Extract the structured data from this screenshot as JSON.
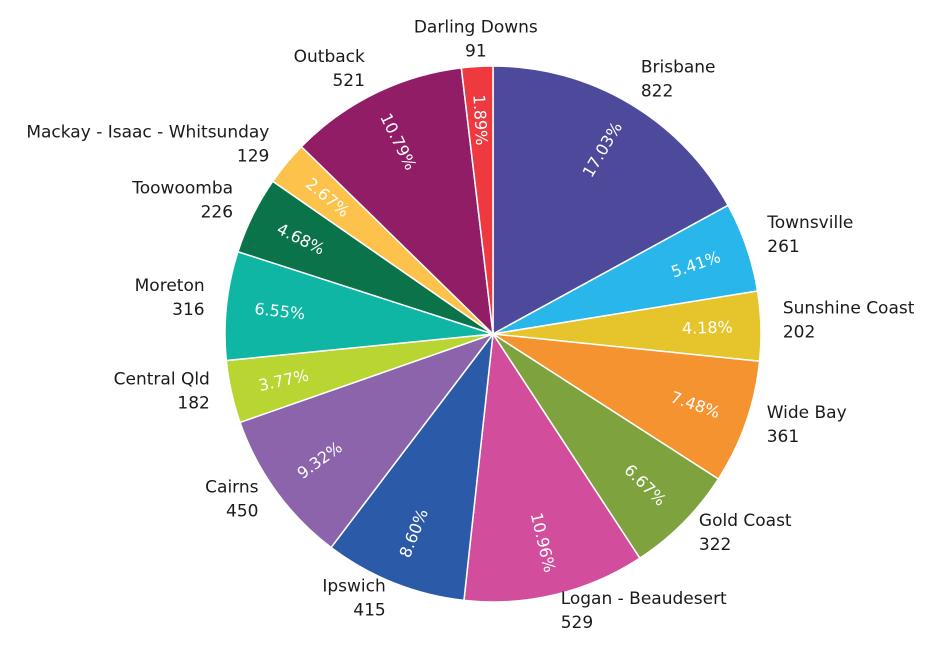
{
  "chart_data": {
    "type": "pie",
    "start_angle_deg": 0,
    "direction": "clockwise",
    "legend": "none",
    "slices": [
      {
        "name": "Brisbane",
        "value": 822,
        "percent_label": "17.03%",
        "color": "#4e4a9b"
      },
      {
        "name": "Townsville",
        "value": 261,
        "percent_label": "5.41%",
        "color": "#29b6ea"
      },
      {
        "name": "Sunshine Coast",
        "value": 202,
        "percent_label": "4.18%",
        "color": "#e5c52b"
      },
      {
        "name": "Wide Bay",
        "value": 361,
        "percent_label": "7.48%",
        "color": "#f49330"
      },
      {
        "name": "Gold Coast",
        "value": 322,
        "percent_label": "6.67%",
        "color": "#7ea33e"
      },
      {
        "name": "Logan - Beaudesert",
        "value": 529,
        "percent_label": "10.96%",
        "color": "#d24d9b"
      },
      {
        "name": "Ipswich",
        "value": 415,
        "percent_label": "8.60%",
        "color": "#2b5aa8"
      },
      {
        "name": "Cairns",
        "value": 450,
        "percent_label": "9.32%",
        "color": "#8c64ac"
      },
      {
        "name": "Central Qld",
        "value": 182,
        "percent_label": "3.77%",
        "color": "#b9d532"
      },
      {
        "name": "Moreton",
        "value": 316,
        "percent_label": "6.55%",
        "color": "#0eb6a3"
      },
      {
        "name": "Toowoomba",
        "value": 226,
        "percent_label": "4.68%",
        "color": "#0a734a"
      },
      {
        "name": "Mackay - Isaac - Whitsunday",
        "value": 129,
        "percent_label": "2.67%",
        "color": "#fdc24c"
      },
      {
        "name": "Outback",
        "value": 521,
        "percent_label": "10.79%",
        "color": "#921d67"
      },
      {
        "name": "Darling Downs",
        "value": 91,
        "percent_label": "1.89%",
        "color": "#ee3a3f"
      }
    ]
  }
}
